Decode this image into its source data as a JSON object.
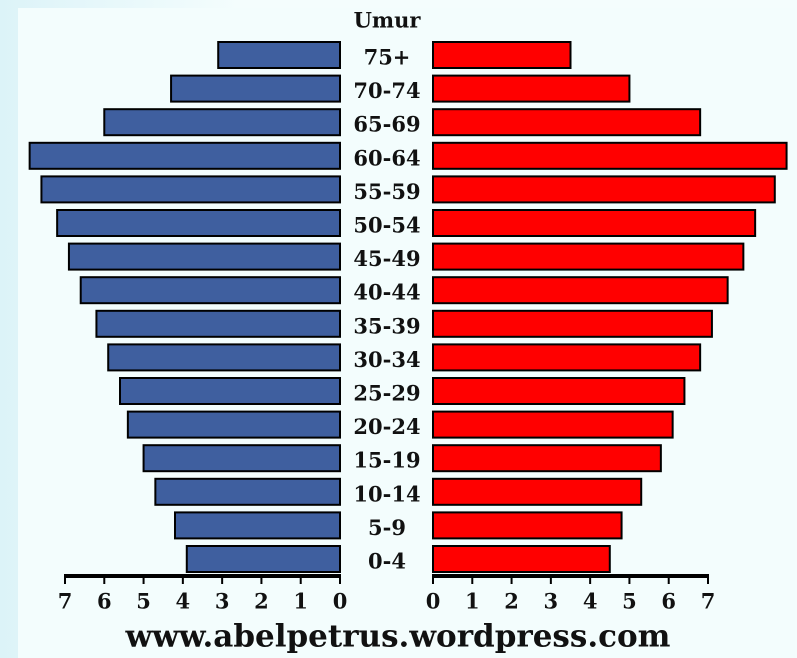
{
  "chart_data": {
    "type": "population-pyramid",
    "axis_label": "Umur",
    "footer": "www.abelpetrus.wordpress.com",
    "categories": [
      "75+",
      "70-74",
      "65-69",
      "60-64",
      "55-59",
      "50-54",
      "45-49",
      "40-44",
      "35-39",
      "30-34",
      "25-29",
      "20-24",
      "15-19",
      "10-14",
      "5-9",
      "0-4"
    ],
    "series": [
      {
        "color": "#3f5f9f",
        "values": [
          3.1,
          4.3,
          6.0,
          7.9,
          7.6,
          7.2,
          6.9,
          6.6,
          6.2,
          5.9,
          5.6,
          5.4,
          5.0,
          4.7,
          4.2,
          3.9
        ]
      },
      {
        "color": "#ff0000",
        "values": [
          3.5,
          5.0,
          6.8,
          9.0,
          8.7,
          8.2,
          7.9,
          7.5,
          7.1,
          6.8,
          6.4,
          6.1,
          5.8,
          5.3,
          4.8,
          4.5
        ]
      }
    ],
    "xlim": [
      0,
      7
    ],
    "xticks": [
      0,
      1,
      2,
      3,
      4,
      5,
      6,
      7
    ]
  }
}
